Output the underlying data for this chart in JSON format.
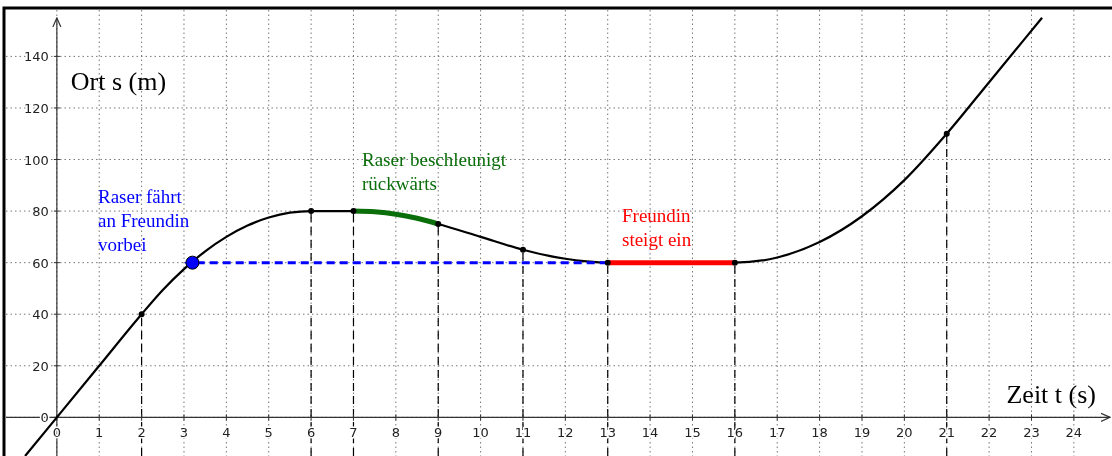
{
  "chart_data": {
    "type": "line",
    "xlabel": "Zeit t  (s)",
    "ylabel": "Ort s  (m)",
    "xlim": [
      -1.2,
      24.9
    ],
    "ylim": [
      -15,
      158
    ],
    "xticks": [
      0,
      1,
      2,
      3,
      4,
      5,
      6,
      7,
      8,
      9,
      10,
      11,
      12,
      13,
      14,
      15,
      16,
      17,
      18,
      19,
      20,
      21,
      22,
      23,
      24
    ],
    "yticks": [
      0,
      20,
      40,
      60,
      80,
      100,
      120,
      140
    ],
    "grid": true,
    "line_style": "solid",
    "series": [
      {
        "color": "#000000",
        "x": [
          -0.75,
          0,
          1,
          2,
          2.5,
          3,
          3.5,
          4,
          4.5,
          5,
          5.5,
          6,
          7,
          7.5,
          8,
          8.5,
          9,
          10,
          11,
          12,
          12.5,
          13,
          16,
          17,
          18,
          19,
          20,
          21,
          22,
          23.25
        ],
        "values": [
          -15,
          0,
          20,
          40,
          49.4,
          57.5,
          64.4,
          70,
          74.4,
          77.5,
          79.4,
          80,
          80,
          79.7,
          78.8,
          77.2,
          75,
          70,
          65,
          61.5,
          60.5,
          60,
          60,
          62,
          68,
          78,
          92,
          110,
          130,
          155
        ]
      },
      {
        "type": "line",
        "color": "#0a6e0a",
        "x": [
          7,
          7.5,
          8,
          8.5,
          9
        ],
        "values": [
          80,
          79.7,
          78.8,
          77.2,
          75
        ]
      },
      {
        "type": "line",
        "color": "#ff0000",
        "x": [
          13,
          16
        ],
        "values": [
          60,
          60
        ]
      },
      {
        "type": "line",
        "color": "#0000ff",
        "line_style": "dashed",
        "x": [
          13,
          3.2
        ],
        "values": [
          60,
          60
        ]
      },
      {
        "type": "scatter",
        "marker": "circle",
        "color": "#0000ff",
        "x": [
          3.2
        ],
        "values": [
          60
        ]
      },
      {
        "type": "scatter",
        "marker": "circle",
        "color": "#000000",
        "x": [
          2,
          6,
          7,
          9,
          11,
          13,
          16,
          21
        ],
        "values": [
          40,
          80,
          80,
          75,
          65,
          60,
          60,
          110
        ]
      }
    ],
    "ref_lines": [
      {
        "axis": "x",
        "value": 2,
        "line_style": "dashed",
        "color": "#000000"
      },
      {
        "axis": "x",
        "value": 6,
        "line_style": "dashed",
        "color": "#000000"
      },
      {
        "axis": "x",
        "value": 7,
        "line_style": "dashed",
        "color": "#000000"
      },
      {
        "axis": "x",
        "value": 9,
        "line_style": "dashed",
        "color": "#000000"
      },
      {
        "axis": "x",
        "value": 11,
        "line_style": "dashed",
        "color": "#000000"
      },
      {
        "axis": "x",
        "value": 13,
        "line_style": "dashed",
        "color": "#000000"
      },
      {
        "axis": "x",
        "value": 16,
        "line_style": "dashed",
        "color": "#000000"
      },
      {
        "axis": "x",
        "value": 21,
        "line_style": "dashed",
        "color": "#000000"
      }
    ],
    "annotations": [
      "Raser fährt\nan Freundin\nvorbei",
      "Raser beschleunigt\nrückwärts",
      "Freundin\nsteigt ein"
    ]
  }
}
